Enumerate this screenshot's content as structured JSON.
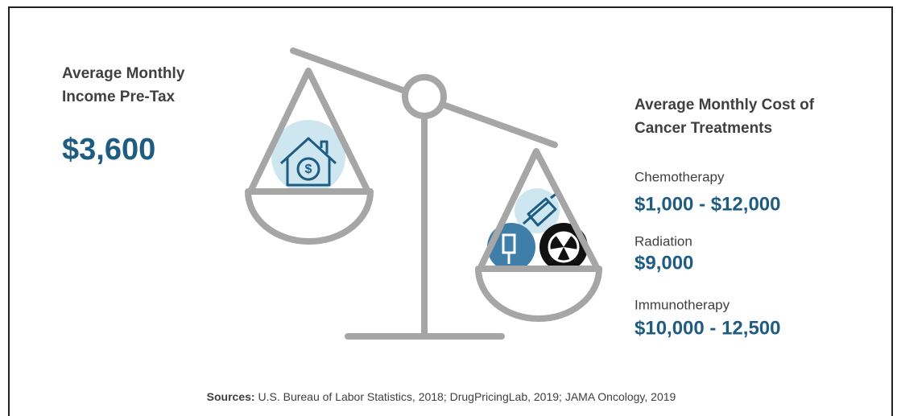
{
  "income": {
    "title_lines": [
      "Average Monthly",
      "Income Pre-Tax"
    ],
    "value": "$3,600"
  },
  "costs": {
    "title_lines": [
      "Average Monthly Cost of",
      "Cancer Treatments"
    ],
    "items": [
      {
        "name": "Chemotherapy",
        "value": "$1,000 - $12,000"
      },
      {
        "name": "Radiation",
        "value": "$9,000"
      },
      {
        "name": "Immunotherapy",
        "value": "$10,000 - 12,500"
      }
    ]
  },
  "sources": {
    "label": "Sources:",
    "text": "U.S. Bureau of Labor Statistics, 2018; DrugPricingLab, 2019; JAMA Oncology, 2019"
  }
}
